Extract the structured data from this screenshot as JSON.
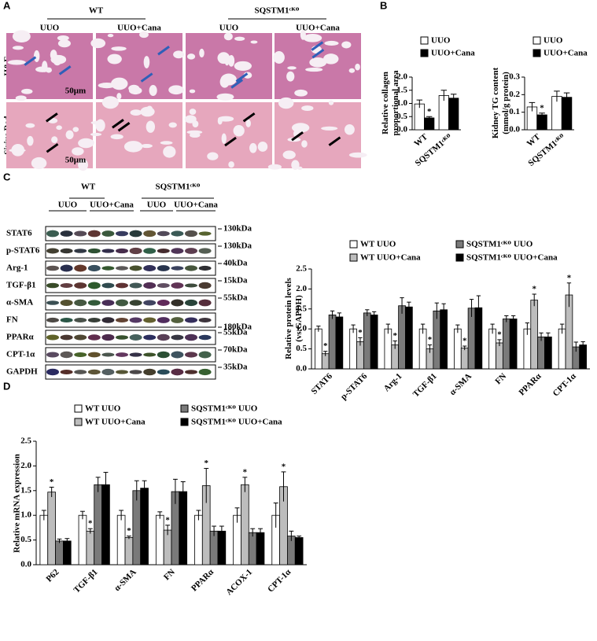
{
  "panel_labels": [
    "A",
    "B",
    "C",
    "D"
  ],
  "panel_a": {
    "groups": [
      "WT",
      "SQSTM1ᶜᴷᴼ"
    ],
    "columns": [
      "UUO",
      "UUO+Cana",
      "UUO",
      "UUO+Cana"
    ],
    "rows": [
      "H&E",
      "Sirius Red"
    ],
    "scale_bars": [
      "50μm",
      "50μm"
    ]
  },
  "panel_c_blot": {
    "groups": [
      "WT",
      "SQSTM1ᶜᴷᴼ"
    ],
    "columns": [
      "UUO",
      "UUO+Cana",
      "UUO",
      "UUO+Cana"
    ],
    "proteins": [
      "STAT6",
      "p-STAT6",
      "Arg-1",
      "TGF-β1",
      "α-SMA",
      "FN",
      "PPARα",
      "CPT-1α",
      "GAPDH"
    ],
    "markers": [
      "130kDa",
      "130kDa",
      "40kDa",
      "15kDa",
      "55kDa",
      "180kDa",
      "55kDa",
      "70kDa",
      "35kDa"
    ]
  },
  "chart_data": [
    {
      "type": "bar",
      "y_label": [
        "Relative collagen",
        "proportional area"
      ],
      "categories": [
        "WT",
        "SQSTM1ᶜᴷᴼ"
      ],
      "series": [
        {
          "name": "UUO",
          "color": "#ffffff",
          "values": [
            0.98,
            1.3
          ],
          "errors": [
            0.15,
            0.2
          ],
          "stars": [
            null,
            null
          ]
        },
        {
          "name": "UUO+Cana",
          "color": "#000000",
          "values": [
            0.45,
            1.2
          ],
          "errors": [
            0.05,
            0.15
          ],
          "stars": [
            "*",
            null
          ]
        }
      ],
      "ylim": [
        0,
        2
      ],
      "yticks": [
        {
          "value": 0,
          "label": "0.0"
        },
        0.5,
        {
          "value": 1,
          "label": "1.0"
        },
        1.5,
        {
          "value": 2,
          "label": "2.0"
        }
      ]
    },
    {
      "type": "bar",
      "y_label": [
        "Kidney TG content",
        "(mmol/g protein)"
      ],
      "categories": [
        "WT",
        "SQSTM1ᶜᴷᴼ"
      ],
      "series": [
        {
          "name": "UUO",
          "color": "#ffffff",
          "values": [
            0.13,
            0.19
          ],
          "errors": [
            0.025,
            0.03
          ],
          "stars": [
            null,
            null
          ]
        },
        {
          "name": "UUO+Cana",
          "color": "#000000",
          "values": [
            0.085,
            0.185
          ],
          "errors": [
            0.01,
            0.025
          ],
          "stars": [
            "*",
            null
          ]
        }
      ],
      "ylim": [
        0,
        0.3
      ],
      "yticks": [
        {
          "value": 0,
          "label": "0.0"
        },
        0.1,
        0.2,
        0.3
      ]
    },
    {
      "type": "bar",
      "y_label": [
        "Relative protein levels",
        "(vs.GAPDH)"
      ],
      "categories": [
        "STAT6",
        "p-STAT6",
        "Arg-1",
        "TGF-β1",
        "α-SMA",
        "FN",
        "PPARα",
        "CPT-1α"
      ],
      "series": [
        {
          "name": "WT UUO",
          "color": "#ffffff",
          "values": [
            1.0,
            1.0,
            1.0,
            1.0,
            1.0,
            1.0,
            1.0,
            1.0
          ],
          "errors": [
            0.07,
            0.1,
            0.12,
            0.12,
            0.1,
            0.12,
            0.15,
            0.12
          ],
          "stars": [
            null,
            null,
            null,
            null,
            null,
            null,
            null,
            null
          ]
        },
        {
          "name": "WT UUO+Cana",
          "color": "#bdbdbd",
          "values": [
            0.38,
            0.68,
            0.6,
            0.5,
            0.52,
            0.65,
            1.72,
            1.85
          ],
          "errors": [
            0.06,
            0.1,
            0.1,
            0.1,
            0.05,
            0.08,
            0.15,
            0.3
          ],
          "stars": [
            "*",
            "*",
            "*",
            "*",
            "*",
            "*",
            "*",
            "*"
          ]
        },
        {
          "name": "SQSTM1ᶜᴷᴼ UUO",
          "color": "#7a7a7a",
          "values": [
            1.35,
            1.4,
            1.58,
            1.45,
            1.52,
            1.25,
            0.8,
            0.55
          ],
          "errors": [
            0.1,
            0.08,
            0.2,
            0.2,
            0.22,
            0.08,
            0.1,
            0.12
          ],
          "stars": [
            null,
            null,
            null,
            null,
            null,
            null,
            null,
            null
          ]
        },
        {
          "name": "SQSTM1ᶜᴷᴼ UUO+Cana",
          "color": "#000000",
          "values": [
            1.3,
            1.35,
            1.55,
            1.48,
            1.53,
            1.25,
            0.8,
            0.6
          ],
          "errors": [
            0.1,
            0.08,
            0.12,
            0.15,
            0.3,
            0.08,
            0.1,
            0.08
          ],
          "stars": [
            null,
            null,
            null,
            null,
            null,
            null,
            null,
            null
          ]
        }
      ],
      "ylim": [
        0,
        2.5
      ],
      "yticks": [
        {
          "value": 0,
          "label": "0.0"
        },
        0.5,
        {
          "value": 1,
          "label": "1.0"
        },
        1.5,
        {
          "value": 2,
          "label": "2.0"
        },
        2.5
      ]
    },
    {
      "type": "bar",
      "y_label": [
        "Relative mRNA expression"
      ],
      "categories": [
        "P62",
        "TGF-β1",
        "α-SMA",
        "FN",
        "PPARα",
        "ACOX-1",
        "CPT-1α"
      ],
      "series": [
        {
          "name": "WT UUO",
          "color": "#ffffff",
          "values": [
            1.0,
            1.0,
            1.0,
            1.0,
            1.0,
            1.0,
            1.0
          ],
          "errors": [
            0.1,
            0.08,
            0.1,
            0.07,
            0.1,
            0.15,
            0.25
          ],
          "stars": [
            null,
            null,
            null,
            null,
            null,
            null,
            null
          ]
        },
        {
          "name": "WT UUO+Cana",
          "color": "#bdbdbd",
          "values": [
            1.47,
            0.68,
            0.55,
            0.7,
            1.6,
            1.62,
            1.58
          ],
          "errors": [
            0.1,
            0.05,
            0.03,
            0.1,
            0.35,
            0.15,
            0.3
          ],
          "stars": [
            "*",
            "*",
            "*",
            "*",
            "*",
            "*",
            "*"
          ]
        },
        {
          "name": "SQSTM1ᶜᴷᴼ UUO",
          "color": "#7a7a7a",
          "values": [
            0.48,
            1.62,
            1.5,
            1.48,
            0.68,
            0.65,
            0.58
          ],
          "errors": [
            0.04,
            0.15,
            0.2,
            0.25,
            0.1,
            0.08,
            0.1
          ],
          "stars": [
            null,
            null,
            null,
            null,
            null,
            null,
            null
          ]
        },
        {
          "name": "SQSTM1ᶜᴷᴼ UUO+Cana",
          "color": "#000000",
          "values": [
            0.48,
            1.62,
            1.55,
            1.48,
            0.68,
            0.65,
            0.55
          ],
          "errors": [
            0.05,
            0.25,
            0.15,
            0.2,
            0.1,
            0.08,
            0.03
          ],
          "stars": [
            null,
            null,
            null,
            null,
            null,
            null,
            null
          ]
        }
      ],
      "ylim": [
        0,
        2.5
      ],
      "yticks": [
        {
          "value": 0,
          "label": "0.0"
        },
        0.5,
        {
          "value": 1,
          "label": "1.0"
        },
        1.5,
        {
          "value": 2,
          "label": "2.0"
        },
        2.5
      ]
    }
  ]
}
